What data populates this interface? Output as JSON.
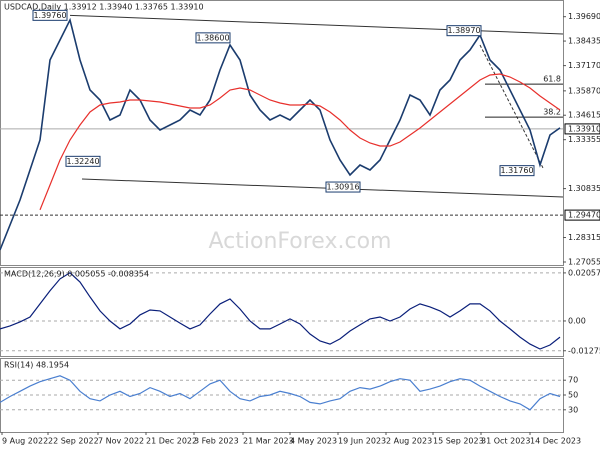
{
  "chart_data": [
    {
      "type": "line",
      "title": "USDCAD,Daily 1.33912 1.33940 1.33765 1.33910",
      "watermark": "ActionForex.com",
      "xlim": [
        0,
        56.3
      ],
      "ylim": [
        1.269,
        1.4055
      ],
      "yticks": [
        {
          "value": 1.3969,
          "label": "1.39690"
        },
        1.38435,
        {
          "value": 1.3717,
          "label": "1.37170"
        },
        {
          "value": 1.3587,
          "label": "1.35870"
        },
        1.34615,
        1.33355,
        1.30835,
        1.28315,
        1.27055
      ],
      "series": [
        {
          "color": "#1b3c6e",
          "values": [
            1.27675,
            1.28962,
            1.3025,
            1.31795,
            1.3334,
            1.3746,
            1.3849,
            1.3952,
            1.3746,
            1.35915,
            1.354,
            1.3437,
            1.34627,
            1.35915,
            1.354,
            1.3437,
            1.33855,
            1.34112,
            1.3437,
            1.34885,
            1.34627,
            1.354,
            1.36945,
            1.38232,
            1.3746,
            1.35657,
            1.34885,
            1.3437,
            1.34627,
            1.3437,
            1.34885,
            1.354,
            1.34885,
            1.3334,
            1.3231,
            1.31537,
            1.32052,
            1.31795,
            1.3231,
            1.3334,
            1.3437,
            1.35657,
            1.354,
            1.34627,
            1.35915,
            1.3643,
            1.3746,
            1.37975,
            1.38747,
            1.3746,
            1.36945,
            1.35915,
            1.34885,
            1.33855,
            1.32052,
            1.33597,
            1.3396
          ]
        },
        {
          "color": "#e8302c",
          "values": [
            null,
            null,
            null,
            null,
            1.2974,
            1.31023,
            1.3231,
            1.3334,
            1.34112,
            1.34782,
            1.35143,
            1.35245,
            1.35297,
            1.354,
            1.354,
            1.35348,
            1.35297,
            1.35194,
            1.35091,
            1.34988,
            1.34988,
            1.35143,
            1.35503,
            1.35915,
            1.36018,
            1.35915,
            1.35657,
            1.354,
            1.35245,
            1.35143,
            1.35143,
            1.35194,
            1.35091,
            1.34782,
            1.3437,
            1.33855,
            1.33443,
            1.33185,
            1.33031,
            1.33031,
            1.33237,
            1.33597,
            1.33958,
            1.3437,
            1.34782,
            1.35194,
            1.35606,
            1.36018,
            1.3643,
            1.36687,
            1.36739,
            1.36585,
            1.36327,
            1.36018,
            1.35606,
            1.35245,
            1.34885
          ]
        }
      ],
      "levels": [
        {
          "value": 1.3391,
          "label": "1.33910",
          "style": "solid"
        },
        {
          "value": 1.2947,
          "label": "1.29470",
          "style": "dashed"
        }
      ],
      "annotations": [
        {
          "x": 5.0,
          "value": 1.3976,
          "label": "1.39760"
        },
        {
          "x": 21.3,
          "value": 1.386,
          "label": "1.38600"
        },
        {
          "x": 46.4,
          "value": 1.3897,
          "label": "1.38970"
        },
        {
          "x": 8.3,
          "value": 1.3224,
          "label": "1.32240"
        },
        {
          "x": 34.3,
          "value": 1.30916,
          "label": "1.30916"
        },
        {
          "x": 51.7,
          "value": 1.3176,
          "label": "1.31760"
        }
      ],
      "fibo": [
        {
          "x": 48.5,
          "value": 1.36216,
          "label": "61.8"
        },
        {
          "x": 48.5,
          "value": 1.34514,
          "label": "38.2"
        }
      ],
      "trendlines": [
        {
          "style": "solid",
          "points": [
            {
              "x": 7.0,
              "value": 1.3976
            },
            {
              "x": 56.3,
              "value": 1.388
            }
          ]
        },
        {
          "style": "solid",
          "points": [
            {
              "x": 8.2,
              "value": 1.3133
            },
            {
              "x": 56.3,
              "value": 1.30405
            }
          ]
        },
        {
          "style": "dashed",
          "points": [
            {
              "x": 48.0,
              "value": 1.3823
            },
            {
              "x": 54.3,
              "value": 1.319
            }
          ]
        }
      ]
    },
    {
      "type": "line",
      "title": "MACD(12,26,9) 0.005055 -0.008354",
      "xlim": [
        0,
        56.3
      ],
      "ylim": [
        -0.015,
        0.0231
      ],
      "yticks": [
        0.020575,
        {
          "value": 0,
          "label": "0.00"
        },
        -0.012755
      ],
      "grid": true,
      "series": [
        {
          "color": "#0a1f7a",
          "values": [
            -0.0034,
            -0.0021,
            -0.0004,
            0.0017,
            0.0073,
            0.0129,
            0.018,
            0.0206,
            0.0167,
            0.0103,
            0.0043,
            0,
            -0.0034,
            -0.0013,
            0.0026,
            0.0047,
            0.0043,
            0.0017,
            -0.0009,
            -0.0034,
            -0.0017,
            0.003,
            0.0073,
            0.0094,
            0.0051,
            0,
            -0.0034,
            -0.0034,
            -0.0013,
            0.0009,
            -0.0013,
            -0.0056,
            -0.0086,
            -0.0099,
            -0.0077,
            -0.0043,
            -0.0017,
            0.0009,
            0.0017,
            0,
            0.0017,
            0.0051,
            0.0073,
            0.006,
            0.0043,
            0.0017,
            0.0043,
            0.0073,
            0.0073,
            0.0043,
            0,
            -0.0034,
            -0.0069,
            -0.0099,
            -0.012,
            -0.0103,
            -0.0069
          ]
        }
      ]
    },
    {
      "type": "line",
      "title": "RSI(14) 48.1954",
      "xlim": [
        0,
        56.3
      ],
      "ylim": [
        0,
        100
      ],
      "yticks": [
        70,
        50,
        30
      ],
      "grid": true,
      "xticks": [
        {
          "value": 0.2,
          "label": "9 Aug 2022"
        },
        {
          "value": 4.8,
          "label": "22 Sep 2022"
        },
        {
          "value": 9.8,
          "label": "7 Nov 2022"
        },
        {
          "value": 14.6,
          "label": "21 Dec 2022"
        },
        {
          "value": 19.4,
          "label": "3 Feb 2023"
        },
        {
          "value": 24.3,
          "label": "21 Mar 2023"
        },
        {
          "value": 29.0,
          "label": "4 May 2023"
        },
        {
          "value": 33.8,
          "label": "19 Jun 2023"
        },
        {
          "value": 38.6,
          "label": "2 Aug 2023"
        },
        {
          "value": 43.3,
          "label": "15 Sep 2023"
        },
        {
          "value": 48.1,
          "label": "31 Oct 2023"
        },
        {
          "value": 53.0,
          "label": "14 Dec 2023"
        }
      ],
      "series": [
        {
          "color": "#4a7fd0",
          "values": [
            40,
            48,
            55,
            62,
            68,
            72,
            76,
            70,
            55,
            45,
            42,
            50,
            55,
            48,
            52,
            60,
            55,
            48,
            52,
            45,
            55,
            65,
            70,
            55,
            45,
            42,
            48,
            50,
            55,
            52,
            48,
            40,
            38,
            42,
            45,
            55,
            60,
            58,
            62,
            68,
            72,
            70,
            55,
            58,
            62,
            68,
            72,
            70,
            62,
            55,
            48,
            42,
            38,
            30,
            45,
            52,
            48
          ]
        }
      ]
    }
  ]
}
